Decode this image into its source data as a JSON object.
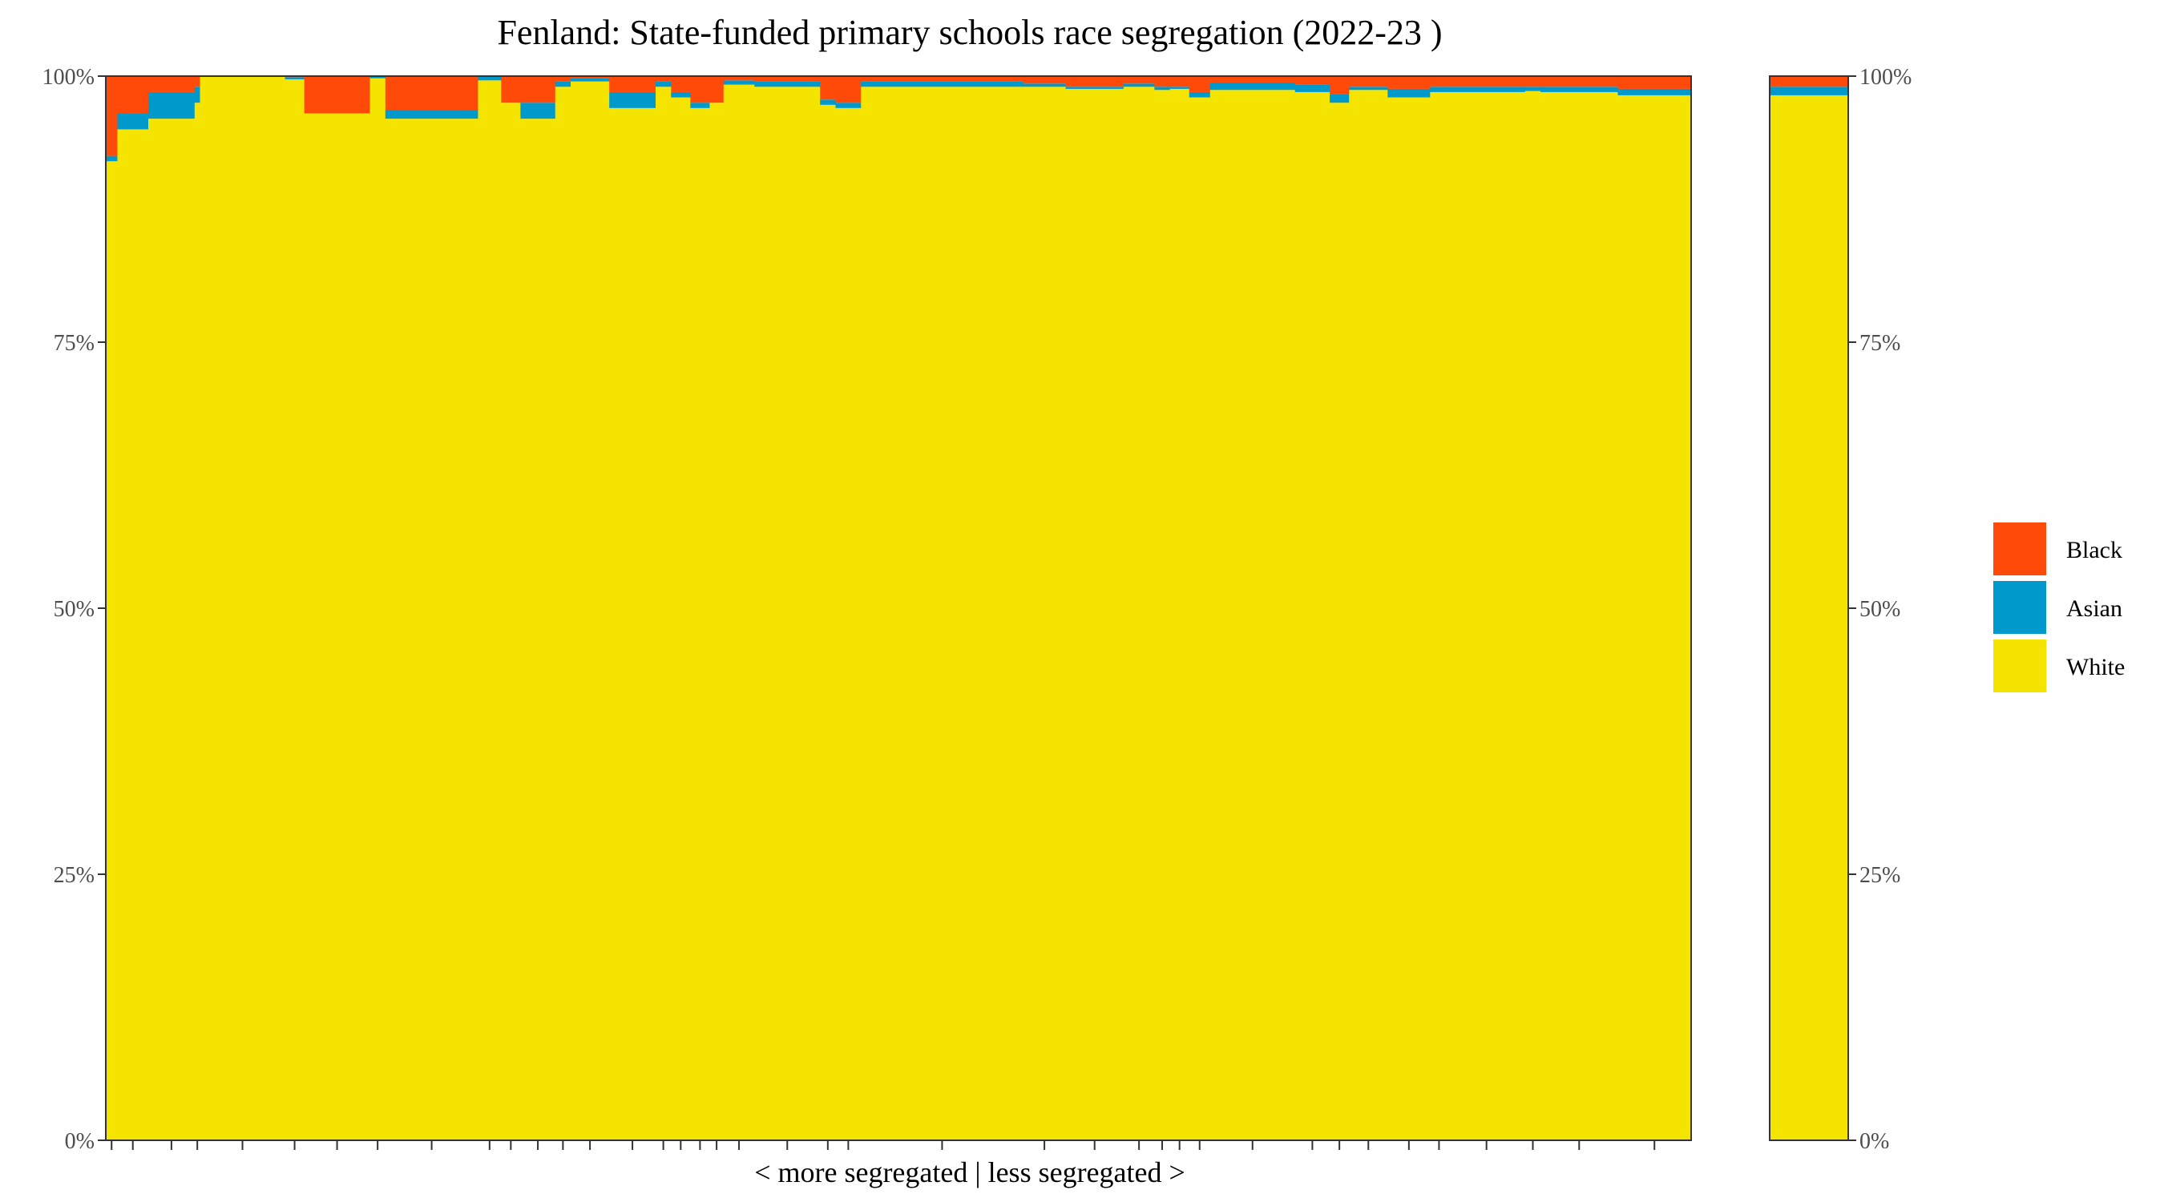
{
  "chart_data": {
    "type": "bar",
    "title": "Fenland: State-funded primary schools race segregation (2022-23 )",
    "xlabel": "< more segregated | less segregated >",
    "ylabel": "",
    "ylim": [
      0,
      100
    ],
    "y_ticks": [
      "0%",
      "25%",
      "50%",
      "75%",
      "100%"
    ],
    "y_tick_values": [
      0,
      25,
      50,
      75,
      100
    ],
    "y_axis_right": true,
    "grid": false,
    "legend_position": "right",
    "legend": [
      {
        "name": "Black",
        "color": "#FF4A0A"
      },
      {
        "name": "Asian",
        "color": "#0099CC"
      },
      {
        "name": "White",
        "color": "#F5E400"
      }
    ],
    "stack_order": [
      "White",
      "Asian",
      "Black"
    ],
    "schools_note": "each bar is one school; bar width proportional to pupils",
    "schools": [
      {
        "width": 1.5,
        "white": 92.0,
        "asian": 0.5,
        "black": 7.5
      },
      {
        "width": 4.0,
        "white": 95.0,
        "asian": 1.5,
        "black": 3.5
      },
      {
        "width": 6.0,
        "white": 96.0,
        "asian": 2.5,
        "black": 1.5
      },
      {
        "width": 0.7,
        "white": 97.5,
        "asian": 1.5,
        "black": 1.0
      },
      {
        "width": 11.0,
        "white": 100.0,
        "asian": 0.0,
        "black": 0.0
      },
      {
        "width": 2.5,
        "white": 99.7,
        "asian": 0.2,
        "black": 0.1
      },
      {
        "width": 8.5,
        "white": 96.5,
        "asian": 0.0,
        "black": 3.5
      },
      {
        "width": 2.0,
        "white": 99.8,
        "asian": 0.2,
        "black": 0.0
      },
      {
        "width": 12.0,
        "white": 96.0,
        "asian": 0.8,
        "black": 3.2
      },
      {
        "width": 3.0,
        "white": 99.6,
        "asian": 0.4,
        "black": 0.0
      },
      {
        "width": 2.5,
        "white": 97.5,
        "asian": 0.0,
        "black": 2.5
      },
      {
        "width": 4.5,
        "white": 96.0,
        "asian": 1.5,
        "black": 2.5
      },
      {
        "width": 2.0,
        "white": 99.0,
        "asian": 0.5,
        "black": 0.5
      },
      {
        "width": 5.0,
        "white": 99.5,
        "asian": 0.3,
        "black": 0.2
      },
      {
        "width": 6.0,
        "white": 97.0,
        "asian": 1.5,
        "black": 1.5
      },
      {
        "width": 2.0,
        "white": 99.0,
        "asian": 0.5,
        "black": 0.5
      },
      {
        "width": 2.5,
        "white": 98.0,
        "asian": 0.5,
        "black": 1.5
      },
      {
        "width": 2.5,
        "white": 97.0,
        "asian": 0.5,
        "black": 2.5
      },
      {
        "width": 1.8,
        "white": 97.5,
        "asian": 0.0,
        "black": 2.5
      },
      {
        "width": 4.0,
        "white": 99.2,
        "asian": 0.4,
        "black": 0.4
      },
      {
        "width": 8.5,
        "white": 99.0,
        "asian": 0.5,
        "black": 0.5
      },
      {
        "width": 2.0,
        "white": 97.3,
        "asian": 0.5,
        "black": 2.2
      },
      {
        "width": 3.3,
        "white": 97.0,
        "asian": 0.5,
        "black": 2.5
      },
      {
        "width": 21.0,
        "white": 99.0,
        "asian": 0.5,
        "black": 0.5
      },
      {
        "width": 5.5,
        "white": 99.0,
        "asian": 0.3,
        "black": 0.7
      },
      {
        "width": 7.5,
        "white": 98.8,
        "asian": 0.2,
        "black": 1.0
      },
      {
        "width": 4.0,
        "white": 99.0,
        "asian": 0.3,
        "black": 0.7
      },
      {
        "width": 2.0,
        "white": 98.7,
        "asian": 0.3,
        "black": 1.0
      },
      {
        "width": 2.5,
        "white": 98.8,
        "asian": 0.2,
        "black": 1.0
      },
      {
        "width": 2.7,
        "white": 98.0,
        "asian": 0.5,
        "black": 1.5
      },
      {
        "width": 11.0,
        "white": 98.7,
        "asian": 0.7,
        "black": 0.6
      },
      {
        "width": 4.5,
        "white": 98.5,
        "asian": 0.7,
        "black": 0.8
      },
      {
        "width": 2.5,
        "white": 97.5,
        "asian": 0.8,
        "black": 1.7
      },
      {
        "width": 5.0,
        "white": 98.7,
        "asian": 0.3,
        "black": 1.0
      },
      {
        "width": 5.5,
        "white": 98.0,
        "asian": 0.8,
        "black": 1.2
      },
      {
        "width": 2.3,
        "white": 98.5,
        "asian": 0.5,
        "black": 1.0
      },
      {
        "width": 10.0,
        "white": 98.5,
        "asian": 0.5,
        "black": 1.0
      },
      {
        "width": 2.0,
        "white": 98.6,
        "asian": 0.4,
        "black": 1.0
      },
      {
        "width": 10.0,
        "white": 98.5,
        "asian": 0.5,
        "black": 1.0
      },
      {
        "width": 9.5,
        "white": 98.2,
        "asian": 0.6,
        "black": 1.2
      }
    ],
    "overall": {
      "white": 98.2,
      "asian": 0.8,
      "black": 1.0
    }
  }
}
